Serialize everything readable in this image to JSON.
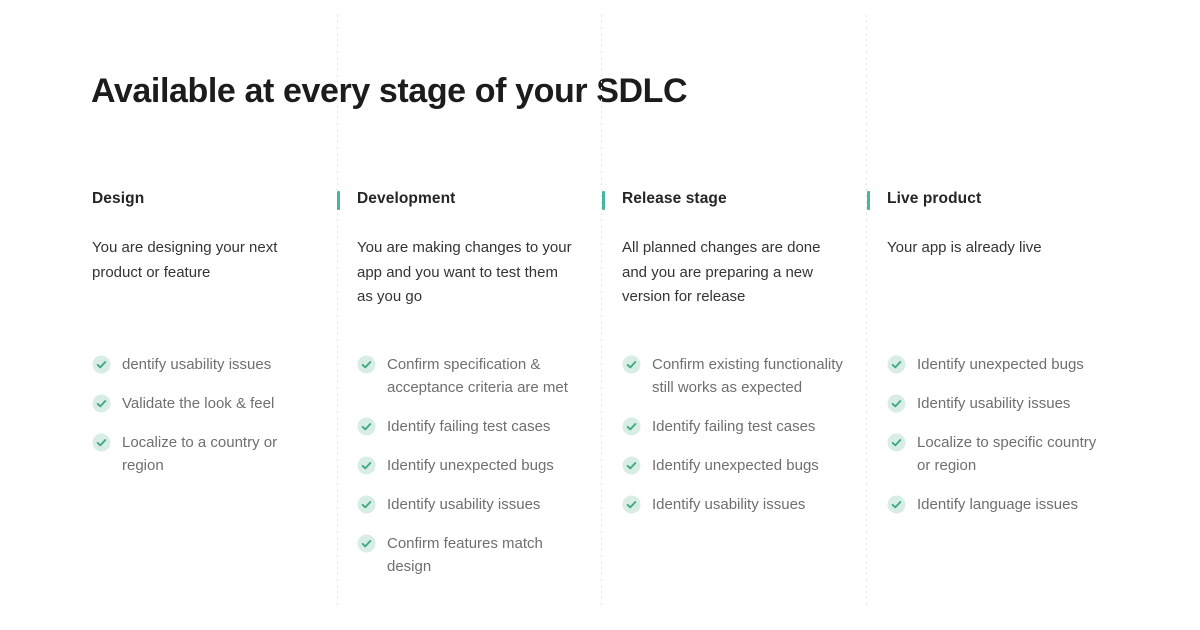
{
  "title": "Available at every stage of your SDLC",
  "colors": {
    "accent": "#48b79e",
    "check_circle": "#d8eee5",
    "check_mark": "#41a885"
  },
  "icons": {
    "check": "check-circle-icon"
  },
  "columns": [
    {
      "name": "Design",
      "description": "You are designing your next product or feature",
      "has_accent_bar": false,
      "items": [
        "dentify usability issues",
        "Validate the look & feel",
        "Localize to a country or region"
      ]
    },
    {
      "name": "Development",
      "description": "You are making changes to your app and you want to test them as you go",
      "has_accent_bar": true,
      "items": [
        "Confirm specification & acceptance criteria are met",
        "Identify failing test cases",
        "Identify unexpected bugs",
        "Identify usability issues",
        "Confirm features match design"
      ]
    },
    {
      "name": "Release stage",
      "description": "All planned changes are done and you are preparing a new version for release",
      "has_accent_bar": true,
      "items": [
        "Confirm existing functionality still works as expected",
        "Identify failing test cases",
        "Identify unexpected bugs",
        "Identify usability issues"
      ]
    },
    {
      "name": "Live product",
      "description": "Your app is already live",
      "has_accent_bar": true,
      "items": [
        "Identify unexpected bugs",
        "Identify usability issues",
        "Localize to specific country or region",
        "Identify language issues"
      ]
    }
  ]
}
